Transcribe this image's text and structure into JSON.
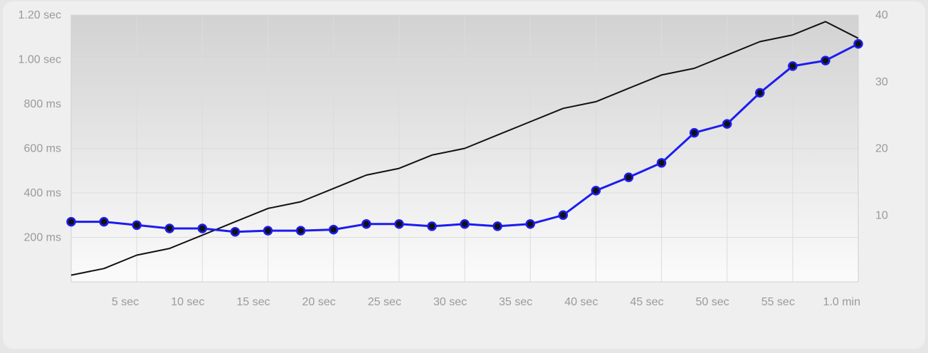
{
  "chart_data": {
    "type": "line",
    "x_unit": "sec",
    "x": [
      0,
      2.5,
      5,
      7.5,
      10,
      12.5,
      15,
      17.5,
      20,
      22.5,
      25,
      27.5,
      30,
      32.5,
      35,
      37.5,
      40,
      42.5,
      45,
      47.5,
      50,
      52.5,
      55,
      57.5,
      60
    ],
    "xlim": [
      0,
      60
    ],
    "x_ticks": [
      {
        "value": 5,
        "label": "5 sec"
      },
      {
        "value": 10,
        "label": "10 sec"
      },
      {
        "value": 15,
        "label": "15 sec"
      },
      {
        "value": 20,
        "label": "20 sec"
      },
      {
        "value": 25,
        "label": "25 sec"
      },
      {
        "value": 30,
        "label": "30 sec"
      },
      {
        "value": 35,
        "label": "35 sec"
      },
      {
        "value": 40,
        "label": "40 sec"
      },
      {
        "value": 45,
        "label": "45 sec"
      },
      {
        "value": 50,
        "label": "50 sec"
      },
      {
        "value": 55,
        "label": "55 sec"
      },
      {
        "value": 60,
        "label": "1.0 min"
      }
    ],
    "y_left": {
      "unit": "ms",
      "ylim": [
        0,
        1200
      ],
      "ticks": [
        {
          "value": 200,
          "label": "200 ms"
        },
        {
          "value": 400,
          "label": "400 ms"
        },
        {
          "value": 600,
          "label": "600 ms"
        },
        {
          "value": 800,
          "label": "800 ms"
        },
        {
          "value": 1000,
          "label": "1.00 sec"
        },
        {
          "value": 1200,
          "label": "1.20 sec"
        }
      ]
    },
    "y_right": {
      "ylim": [
        0,
        40
      ],
      "ticks": [
        {
          "value": 10,
          "label": "10"
        },
        {
          "value": 20,
          "label": "20"
        },
        {
          "value": 30,
          "label": "30"
        },
        {
          "value": 40,
          "label": "40"
        }
      ]
    },
    "series": [
      {
        "axis": "right",
        "color": "#111111",
        "markers": false,
        "values": [
          1,
          2,
          4,
          5,
          7,
          9,
          11,
          12,
          14,
          16,
          17,
          19,
          20,
          22,
          24,
          26,
          27,
          29,
          31,
          32,
          34,
          36,
          37,
          39,
          36.5
        ]
      },
      {
        "axis": "left",
        "color": "#1c1cf0",
        "markers": true,
        "values": [
          270,
          270,
          255,
          240,
          240,
          225,
          230,
          230,
          235,
          260,
          260,
          250,
          260,
          250,
          260,
          300,
          410,
          470,
          535,
          670,
          710,
          850,
          970,
          995,
          1070
        ]
      }
    ],
    "grid": true,
    "area_fill": true,
    "colors": {
      "background": "#efefef",
      "plot_top": "#d2d2d2",
      "plot_bottom": "#fbfbfb",
      "grid": "#dcdcdc",
      "axis": "#cfcfcf",
      "tick_text": "#9a9a9a"
    }
  }
}
